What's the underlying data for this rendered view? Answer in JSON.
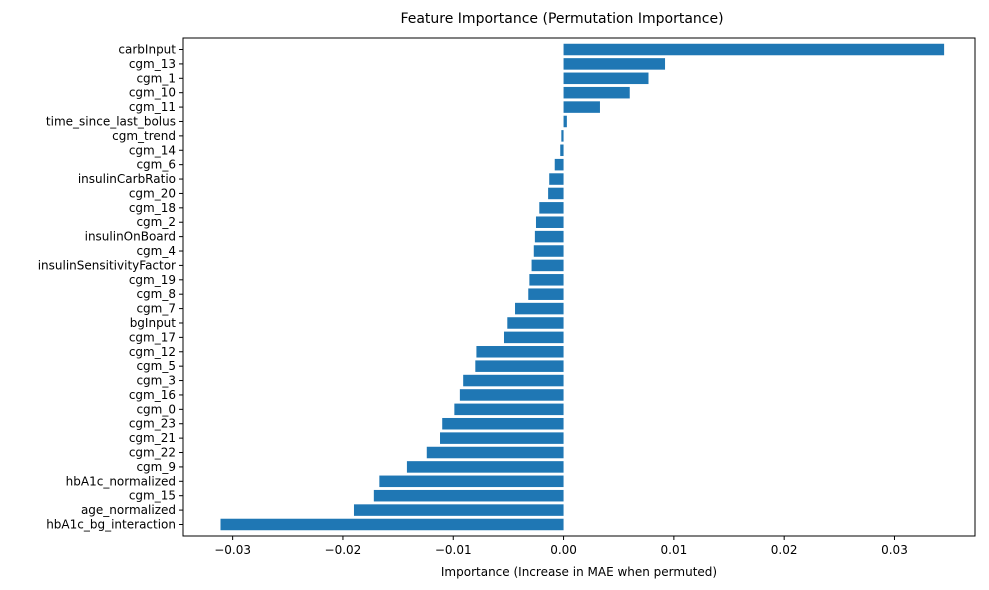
{
  "chart_data": {
    "type": "bar",
    "orientation": "horizontal",
    "title": "Feature Importance (Permutation Importance)",
    "xlabel": "Importance (Increase in MAE when permuted)",
    "ylabel": "",
    "xlim": [
      -0.0345,
      0.0373
    ],
    "xticks": [
      -0.03,
      -0.02,
      -0.01,
      0.0,
      0.01,
      0.02,
      0.03
    ],
    "xtick_labels": [
      "−0.03",
      "−0.02",
      "−0.01",
      "0.00",
      "0.01",
      "0.02",
      "0.03"
    ],
    "grid": false,
    "bar_color": "#1f77b4",
    "categories": [
      "carbInput",
      "cgm_13",
      "cgm_1",
      "cgm_10",
      "cgm_11",
      "time_since_last_bolus",
      "cgm_trend",
      "cgm_14",
      "cgm_6",
      "insulinCarbRatio",
      "cgm_20",
      "cgm_18",
      "cgm_2",
      "insulinOnBoard",
      "cgm_4",
      "insulinSensitivityFactor",
      "cgm_19",
      "cgm_8",
      "cgm_7",
      "bgInput",
      "cgm_17",
      "cgm_12",
      "cgm_5",
      "cgm_3",
      "cgm_16",
      "cgm_0",
      "cgm_23",
      "cgm_21",
      "cgm_22",
      "cgm_9",
      "hbA1c_normalized",
      "cgm_15",
      "age_normalized",
      "hbA1c_bg_interaction"
    ],
    "values": [
      0.0345,
      0.0092,
      0.0077,
      0.006,
      0.0033,
      0.0003,
      -0.0002,
      -0.0003,
      -0.0008,
      -0.0013,
      -0.0014,
      -0.0022,
      -0.0025,
      -0.0026,
      -0.0027,
      -0.0029,
      -0.0031,
      -0.0032,
      -0.0044,
      -0.0051,
      -0.0054,
      -0.0079,
      -0.008,
      -0.0091,
      -0.0094,
      -0.0099,
      -0.011,
      -0.0112,
      -0.0124,
      -0.0142,
      -0.0167,
      -0.0172,
      -0.019,
      -0.0311
    ]
  }
}
